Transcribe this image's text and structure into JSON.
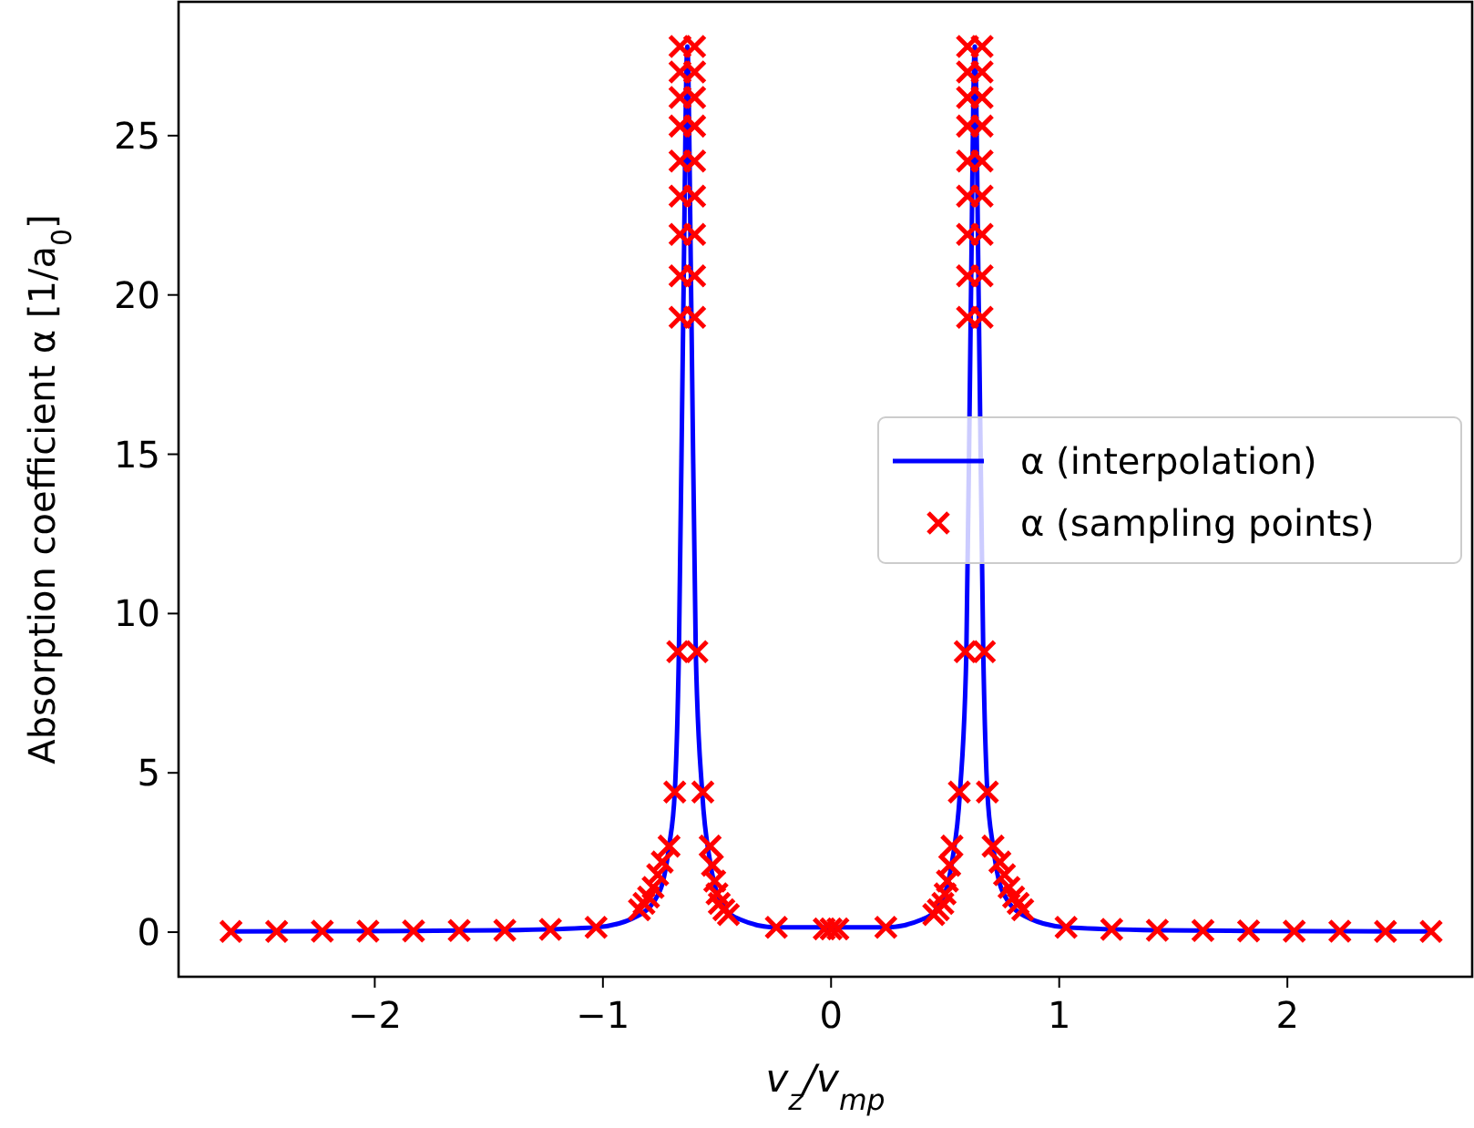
{
  "chart_data": {
    "type": "line",
    "xlabel": "v$_{z}$/v$_{mp}$",
    "ylabel": "Absorption coefficient α [1/a$_{0}$]",
    "xlim": [
      -2.86,
      2.81
    ],
    "ylim": [
      -1.4,
      29.2
    ],
    "xticks": [
      {
        "value": -2,
        "label": "−2"
      },
      {
        "value": -1,
        "label": "−1"
      },
      0,
      1,
      2
    ],
    "yticks": [
      0,
      5,
      10,
      15,
      20,
      25
    ],
    "legend": "right",
    "grid": false,
    "series": [
      {
        "name": "α (interpolation)",
        "color": "#0000ff",
        "line_style": "solid",
        "marker": "none",
        "x": [
          -2.63,
          -2.23,
          -1.83,
          -1.43,
          -1.03,
          -0.85,
          -0.75,
          -0.71,
          -0.685,
          -0.667,
          -0.648,
          -0.63,
          -0.612,
          -0.593,
          -0.565,
          -0.53,
          -0.47,
          -0.4,
          -0.24,
          0.24,
          0.4,
          0.47,
          0.53,
          0.565,
          0.593,
          0.612,
          0.63,
          0.648,
          0.667,
          0.685,
          0.71,
          0.75,
          0.85,
          1.03,
          1.43,
          1.83,
          2.23,
          2.63
        ],
        "values": [
          0.02,
          0.03,
          0.04,
          0.06,
          0.15,
          0.5,
          1.3,
          2.7,
          4.4,
          8.8,
          19.3,
          27.8,
          19.3,
          8.8,
          4.4,
          2.2,
          0.8,
          0.4,
          0.15,
          0.15,
          0.4,
          0.8,
          2.2,
          4.4,
          8.8,
          19.3,
          27.8,
          19.3,
          8.8,
          4.4,
          2.7,
          1.3,
          0.5,
          0.15,
          0.06,
          0.04,
          0.03,
          0.02
        ]
      },
      {
        "name": "α (sampling points)",
        "type": "scatter",
        "color": "#ff0000",
        "marker": "cross",
        "x": [
          -2.63,
          -2.43,
          -2.23,
          -2.03,
          -1.83,
          -1.63,
          -1.43,
          -1.23,
          -1.03,
          -0.84,
          -0.82,
          -0.8,
          -0.78,
          -0.76,
          -0.74,
          -0.71,
          -0.685,
          -0.672,
          -0.662,
          -0.662,
          -0.662,
          -0.662,
          -0.662,
          -0.662,
          -0.662,
          -0.662,
          -0.662,
          -0.598,
          -0.598,
          -0.598,
          -0.598,
          -0.598,
          -0.598,
          -0.598,
          -0.598,
          -0.598,
          -0.588,
          -0.562,
          -0.53,
          -0.52,
          -0.51,
          -0.5,
          -0.49,
          -0.47,
          -0.45,
          -0.24,
          -0.03,
          0,
          0.03,
          0.24,
          0.45,
          0.47,
          0.49,
          0.5,
          0.51,
          0.52,
          0.53,
          0.562,
          0.588,
          0.598,
          0.598,
          0.598,
          0.598,
          0.598,
          0.598,
          0.598,
          0.598,
          0.598,
          0.662,
          0.662,
          0.662,
          0.662,
          0.662,
          0.662,
          0.662,
          0.662,
          0.662,
          0.672,
          0.685,
          0.71,
          0.74,
          0.76,
          0.78,
          0.8,
          0.82,
          0.84,
          1.03,
          1.23,
          1.43,
          1.63,
          1.83,
          2.03,
          2.23,
          2.43,
          2.63
        ],
        "values": [
          0.02,
          0.02,
          0.03,
          0.03,
          0.04,
          0.05,
          0.06,
          0.09,
          0.15,
          0.7,
          0.9,
          1.1,
          1.4,
          1.8,
          2.2,
          2.7,
          4.4,
          8.8,
          19.3,
          20.6,
          21.9,
          23.1,
          24.2,
          25.3,
          26.2,
          27,
          27.8,
          19.3,
          20.6,
          21.9,
          23.1,
          24.2,
          25.3,
          26.2,
          27,
          27.8,
          8.8,
          4.4,
          2.7,
          2.1,
          1.6,
          1.2,
          0.9,
          0.7,
          0.55,
          0.15,
          0.1,
          0.1,
          0.1,
          0.15,
          0.55,
          0.7,
          0.9,
          1.2,
          1.6,
          2.1,
          2.7,
          4.4,
          8.8,
          19.3,
          20.6,
          21.9,
          23.1,
          24.2,
          25.3,
          26.2,
          27,
          27.8,
          19.3,
          20.6,
          21.9,
          23.1,
          24.2,
          25.3,
          26.2,
          27,
          27.8,
          8.8,
          4.4,
          2.7,
          2.2,
          1.8,
          1.4,
          1.1,
          0.9,
          0.7,
          0.15,
          0.09,
          0.06,
          0.05,
          0.04,
          0.03,
          0.03,
          0.02,
          0.02
        ]
      }
    ]
  }
}
